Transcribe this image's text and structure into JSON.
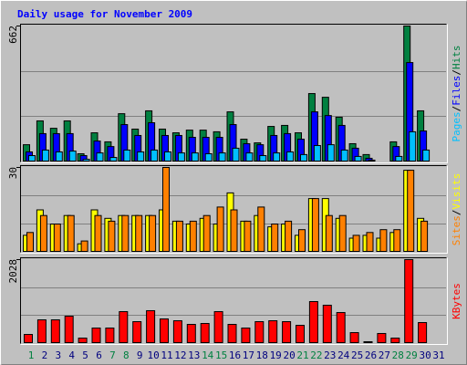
{
  "chart_data": [
    {
      "type": "bar",
      "title": "Daily usage for November 2009",
      "ylim": [
        0,
        662
      ],
      "yticks": [
        662
      ],
      "legend_separator": "/",
      "series": [
        {
          "name": "Hits",
          "color": "#008040",
          "values": [
            84,
            200,
            164,
            200,
            40,
            142,
            98,
            235,
            160,
            249,
            160,
            142,
            155,
            155,
            147,
            244,
            111,
            93,
            173,
            178,
            142,
            333,
            315,
            218,
            89,
            36,
            4,
            98,
            662,
            249,
            0
          ]
        },
        {
          "name": "Files",
          "color": "#0000ff",
          "values": [
            49,
            138,
            138,
            138,
            31,
            102,
            75,
            182,
            129,
            191,
            129,
            129,
            120,
            120,
            120,
            182,
            89,
            84,
            129,
            138,
            111,
            244,
            226,
            178,
            67,
            18,
            4,
            75,
            484,
            151,
            0
          ]
        },
        {
          "name": "Pages",
          "color": "#00c0ff",
          "values": [
            31,
            58,
            49,
            53,
            13,
            44,
            22,
            58,
            49,
            58,
            49,
            44,
            44,
            40,
            44,
            67,
            44,
            31,
            44,
            49,
            36,
            80,
            84,
            58,
            27,
            9,
            0,
            27,
            147,
            58,
            0
          ]
        }
      ]
    },
    {
      "type": "bar",
      "ylim": [
        0,
        30
      ],
      "yticks": [
        30
      ],
      "legend_separator": "/",
      "series": [
        {
          "name": "Visits",
          "color": "#ffff00",
          "values": [
            6,
            15,
            10,
            13,
            3,
            15,
            12,
            13,
            13,
            13,
            15,
            11,
            10,
            12,
            10,
            21,
            11,
            13,
            9,
            10,
            6,
            19,
            19,
            12,
            5,
            6,
            5,
            7,
            29,
            12,
            0
          ]
        },
        {
          "name": "Sites",
          "color": "#ff8000",
          "values": [
            7,
            13,
            10,
            13,
            4,
            13,
            11,
            13,
            13,
            13,
            30,
            11,
            11,
            13,
            16,
            15,
            11,
            16,
            10,
            11,
            8,
            19,
            13,
            13,
            6,
            7,
            8,
            8,
            29,
            11,
            0
          ]
        }
      ]
    },
    {
      "type": "bar",
      "ylim": [
        0,
        2028
      ],
      "yticks": [
        2028
      ],
      "categories": [
        "1",
        "2",
        "3",
        "4",
        "5",
        "6",
        "7",
        "8",
        "9",
        "10",
        "11",
        "12",
        "13",
        "14",
        "15",
        "16",
        "17",
        "18",
        "19",
        "20",
        "21",
        "22",
        "23",
        "24",
        "25",
        "26",
        "27",
        "28",
        "29",
        "30",
        "31"
      ],
      "category_colors": [
        "#008040",
        "#00007f",
        "#00007f",
        "#00007f",
        "#00007f",
        "#00007f",
        "#008040",
        "#008040",
        "#00007f",
        "#00007f",
        "#00007f",
        "#00007f",
        "#00007f",
        "#008040",
        "#008040",
        "#00007f",
        "#00007f",
        "#00007f",
        "#00007f",
        "#00007f",
        "#008040",
        "#008040",
        "#00007f",
        "#00007f",
        "#00007f",
        "#00007f",
        "#00007f",
        "#008040",
        "#008040",
        "#00007f",
        "#00007f"
      ],
      "series": [
        {
          "name": "KBytes",
          "color": "#ff0000",
          "values": [
            220,
            573,
            573,
            661,
            132,
            375,
            375,
            771,
            529,
            794,
            595,
            551,
            463,
            485,
            771,
            463,
            375,
            529,
            551,
            529,
            441,
            1014,
            926,
            749,
            264,
            44,
            243,
            132,
            2028,
            507,
            0
          ]
        }
      ]
    }
  ]
}
